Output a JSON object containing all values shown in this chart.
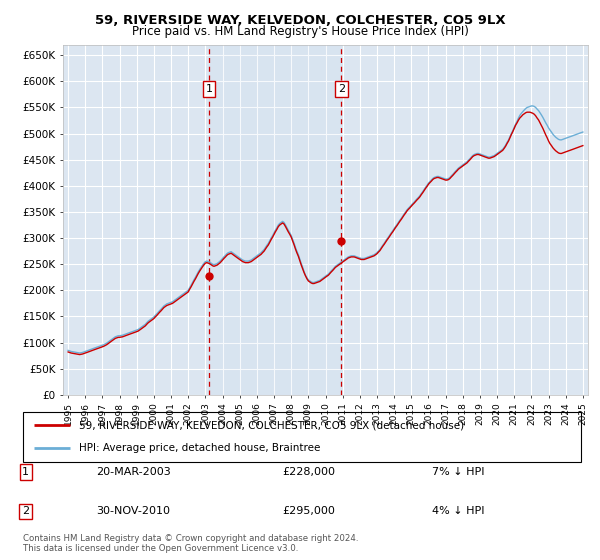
{
  "title": "59, RIVERSIDE WAY, KELVEDON, COLCHESTER, CO5 9LX",
  "subtitle": "Price paid vs. HM Land Registry's House Price Index (HPI)",
  "background_color": "#ffffff",
  "plot_bg_color": "#dce6f1",
  "grid_color": "#ffffff",
  "sale1_year": 2003.2,
  "sale1_label": "1",
  "sale1_value": 228000,
  "sale2_year": 2010.92,
  "sale2_label": "2",
  "sale2_value": 295000,
  "legend_line1": "59, RIVERSIDE WAY, KELVEDON, COLCHESTER, CO5 9LX (detached house)",
  "legend_line2": "HPI: Average price, detached house, Braintree",
  "table_row1_num": "1",
  "table_row1_date": "20-MAR-2003",
  "table_row1_price": "£228,000",
  "table_row1_hpi": "7% ↓ HPI",
  "table_row2_num": "2",
  "table_row2_date": "30-NOV-2010",
  "table_row2_price": "£295,000",
  "table_row2_hpi": "4% ↓ HPI",
  "footnote": "Contains HM Land Registry data © Crown copyright and database right 2024.\nThis data is licensed under the Open Government Licence v3.0.",
  "ylim": [
    0,
    670000
  ],
  "yticks": [
    0,
    50000,
    100000,
    150000,
    200000,
    250000,
    300000,
    350000,
    400000,
    450000,
    500000,
    550000,
    600000,
    650000
  ],
  "sale_color": "#cc0000",
  "hpi_color": "#6baed6",
  "vline_color": "#cc0000",
  "years_x": [
    1995.0,
    1995.08,
    1995.17,
    1995.25,
    1995.33,
    1995.42,
    1995.5,
    1995.58,
    1995.67,
    1995.75,
    1995.83,
    1995.92,
    1996.0,
    1996.08,
    1996.17,
    1996.25,
    1996.33,
    1996.42,
    1996.5,
    1996.58,
    1996.67,
    1996.75,
    1996.83,
    1996.92,
    1997.0,
    1997.08,
    1997.17,
    1997.25,
    1997.33,
    1997.42,
    1997.5,
    1997.58,
    1997.67,
    1997.75,
    1997.83,
    1997.92,
    1998.0,
    1998.08,
    1998.17,
    1998.25,
    1998.33,
    1998.42,
    1998.5,
    1998.58,
    1998.67,
    1998.75,
    1998.83,
    1998.92,
    1999.0,
    1999.08,
    1999.17,
    1999.25,
    1999.33,
    1999.42,
    1999.5,
    1999.58,
    1999.67,
    1999.75,
    1999.83,
    1999.92,
    2000.0,
    2000.08,
    2000.17,
    2000.25,
    2000.33,
    2000.42,
    2000.5,
    2000.58,
    2000.67,
    2000.75,
    2000.83,
    2000.92,
    2001.0,
    2001.08,
    2001.17,
    2001.25,
    2001.33,
    2001.42,
    2001.5,
    2001.58,
    2001.67,
    2001.75,
    2001.83,
    2001.92,
    2002.0,
    2002.08,
    2002.17,
    2002.25,
    2002.33,
    2002.42,
    2002.5,
    2002.58,
    2002.67,
    2002.75,
    2002.83,
    2002.92,
    2003.0,
    2003.08,
    2003.17,
    2003.25,
    2003.33,
    2003.42,
    2003.5,
    2003.58,
    2003.67,
    2003.75,
    2003.83,
    2003.92,
    2004.0,
    2004.08,
    2004.17,
    2004.25,
    2004.33,
    2004.42,
    2004.5,
    2004.58,
    2004.67,
    2004.75,
    2004.83,
    2004.92,
    2005.0,
    2005.08,
    2005.17,
    2005.25,
    2005.33,
    2005.42,
    2005.5,
    2005.58,
    2005.67,
    2005.75,
    2005.83,
    2005.92,
    2006.0,
    2006.08,
    2006.17,
    2006.25,
    2006.33,
    2006.42,
    2006.5,
    2006.58,
    2006.67,
    2006.75,
    2006.83,
    2006.92,
    2007.0,
    2007.08,
    2007.17,
    2007.25,
    2007.33,
    2007.42,
    2007.5,
    2007.58,
    2007.67,
    2007.75,
    2007.83,
    2007.92,
    2008.0,
    2008.08,
    2008.17,
    2008.25,
    2008.33,
    2008.42,
    2008.5,
    2008.58,
    2008.67,
    2008.75,
    2008.83,
    2008.92,
    2009.0,
    2009.08,
    2009.17,
    2009.25,
    2009.33,
    2009.42,
    2009.5,
    2009.58,
    2009.67,
    2009.75,
    2009.83,
    2009.92,
    2010.0,
    2010.08,
    2010.17,
    2010.25,
    2010.33,
    2010.42,
    2010.5,
    2010.58,
    2010.67,
    2010.75,
    2010.83,
    2010.92,
    2011.0,
    2011.08,
    2011.17,
    2011.25,
    2011.33,
    2011.42,
    2011.5,
    2011.58,
    2011.67,
    2011.75,
    2011.83,
    2011.92,
    2012.0,
    2012.08,
    2012.17,
    2012.25,
    2012.33,
    2012.42,
    2012.5,
    2012.58,
    2012.67,
    2012.75,
    2012.83,
    2012.92,
    2013.0,
    2013.08,
    2013.17,
    2013.25,
    2013.33,
    2013.42,
    2013.5,
    2013.58,
    2013.67,
    2013.75,
    2013.83,
    2013.92,
    2014.0,
    2014.08,
    2014.17,
    2014.25,
    2014.33,
    2014.42,
    2014.5,
    2014.58,
    2014.67,
    2014.75,
    2014.83,
    2014.92,
    2015.0,
    2015.08,
    2015.17,
    2015.25,
    2015.33,
    2015.42,
    2015.5,
    2015.58,
    2015.67,
    2015.75,
    2015.83,
    2015.92,
    2016.0,
    2016.08,
    2016.17,
    2016.25,
    2016.33,
    2016.42,
    2016.5,
    2016.58,
    2016.67,
    2016.75,
    2016.83,
    2016.92,
    2017.0,
    2017.08,
    2017.17,
    2017.25,
    2017.33,
    2017.42,
    2017.5,
    2017.58,
    2017.67,
    2017.75,
    2017.83,
    2017.92,
    2018.0,
    2018.08,
    2018.17,
    2018.25,
    2018.33,
    2018.42,
    2018.5,
    2018.58,
    2018.67,
    2018.75,
    2018.83,
    2018.92,
    2019.0,
    2019.08,
    2019.17,
    2019.25,
    2019.33,
    2019.42,
    2019.5,
    2019.58,
    2019.67,
    2019.75,
    2019.83,
    2019.92,
    2020.0,
    2020.08,
    2020.17,
    2020.25,
    2020.33,
    2020.42,
    2020.5,
    2020.58,
    2020.67,
    2020.75,
    2020.83,
    2020.92,
    2021.0,
    2021.08,
    2021.17,
    2021.25,
    2021.33,
    2021.42,
    2021.5,
    2021.58,
    2021.67,
    2021.75,
    2021.83,
    2021.92,
    2022.0,
    2022.08,
    2022.17,
    2022.25,
    2022.33,
    2022.42,
    2022.5,
    2022.58,
    2022.67,
    2022.75,
    2022.83,
    2022.92,
    2023.0,
    2023.08,
    2023.17,
    2023.25,
    2023.33,
    2023.42,
    2023.5,
    2023.58,
    2023.67,
    2023.75,
    2023.83,
    2023.92,
    2024.0,
    2024.08,
    2024.17,
    2024.25,
    2024.33,
    2024.42,
    2024.5,
    2024.58,
    2024.67,
    2024.75,
    2024.83,
    2024.92,
    2025.0
  ],
  "hpi_vals": [
    85000,
    84000,
    83000,
    82500,
    82000,
    81500,
    81000,
    80500,
    80000,
    80500,
    81000,
    82000,
    83000,
    84000,
    85000,
    86000,
    87000,
    88000,
    89000,
    90000,
    91000,
    92000,
    93000,
    94000,
    95000,
    96000,
    97500,
    99000,
    101000,
    103000,
    105000,
    107000,
    109000,
    111000,
    112000,
    113000,
    113000,
    113500,
    114000,
    115000,
    116000,
    117000,
    118000,
    119000,
    120000,
    121000,
    122000,
    123000,
    124000,
    125000,
    127000,
    129000,
    131000,
    133000,
    135000,
    138000,
    141000,
    143000,
    145000,
    147000,
    149000,
    152000,
    155000,
    158000,
    161000,
    164000,
    167000,
    170000,
    172000,
    174000,
    175000,
    176000,
    177000,
    178000,
    180000,
    182000,
    184000,
    186000,
    188000,
    190000,
    192000,
    194000,
    196000,
    198000,
    200000,
    205000,
    210000,
    215000,
    220000,
    225000,
    230000,
    235000,
    240000,
    244000,
    248000,
    252000,
    255000,
    256000,
    255000,
    254000,
    252000,
    250000,
    249000,
    250000,
    251000,
    253000,
    255000,
    258000,
    261000,
    264000,
    267000,
    270000,
    272000,
    273000,
    274000,
    272000,
    270000,
    268000,
    266000,
    264000,
    262000,
    260000,
    258000,
    257000,
    256000,
    256000,
    256000,
    257000,
    258000,
    260000,
    262000,
    264000,
    266000,
    268000,
    270000,
    272000,
    275000,
    278000,
    282000,
    286000,
    290000,
    295000,
    300000,
    305000,
    310000,
    315000,
    320000,
    325000,
    328000,
    330000,
    332000,
    330000,
    325000,
    320000,
    315000,
    310000,
    305000,
    298000,
    290000,
    282000,
    275000,
    268000,
    260000,
    252000,
    244000,
    236000,
    229000,
    224000,
    220000,
    218000,
    216000,
    215000,
    215000,
    216000,
    217000,
    218000,
    219000,
    221000,
    223000,
    225000,
    227000,
    229000,
    231000,
    234000,
    237000,
    240000,
    243000,
    246000,
    248000,
    250000,
    252000,
    254000,
    256000,
    258000,
    260000,
    262000,
    264000,
    265000,
    266000,
    266000,
    266000,
    265000,
    264000,
    263000,
    262000,
    261000,
    261000,
    261000,
    262000,
    263000,
    264000,
    265000,
    266000,
    267000,
    268000,
    270000,
    272000,
    275000,
    278000,
    282000,
    286000,
    290000,
    294000,
    298000,
    302000,
    306000,
    310000,
    314000,
    318000,
    322000,
    326000,
    330000,
    334000,
    338000,
    342000,
    346000,
    350000,
    354000,
    357000,
    360000,
    363000,
    366000,
    369000,
    372000,
    375000,
    378000,
    381000,
    385000,
    389000,
    393000,
    397000,
    401000,
    405000,
    408000,
    411000,
    414000,
    416000,
    417000,
    418000,
    418000,
    417000,
    416000,
    415000,
    414000,
    413000,
    413000,
    414000,
    416000,
    419000,
    422000,
    425000,
    428000,
    431000,
    434000,
    436000,
    438000,
    440000,
    442000,
    444000,
    446000,
    449000,
    452000,
    455000,
    458000,
    460000,
    461000,
    462000,
    462000,
    461000,
    460000,
    459000,
    458000,
    457000,
    456000,
    455000,
    455000,
    456000,
    457000,
    458000,
    460000,
    462000,
    464000,
    466000,
    468000,
    470000,
    474000,
    478000,
    483000,
    488000,
    494000,
    500000,
    506000,
    512000,
    518000,
    524000,
    530000,
    535000,
    539000,
    542000,
    545000,
    548000,
    550000,
    551000,
    552000,
    553000,
    553000,
    552000,
    550000,
    547000,
    544000,
    540000,
    536000,
    531000,
    526000,
    521000,
    516000,
    511000,
    507000,
    503000,
    499000,
    496000,
    493000,
    491000,
    489000,
    488000,
    488000,
    489000,
    490000,
    491000,
    492000,
    493000,
    494000,
    495000,
    496000,
    497000,
    498000,
    499000,
    500000,
    501000,
    502000,
    503000
  ],
  "price_vals": [
    82000,
    81000,
    80000,
    79500,
    79000,
    78500,
    78000,
    77500,
    77000,
    77500,
    78000,
    79000,
    80000,
    81000,
    82000,
    83000,
    84000,
    85000,
    86000,
    87000,
    88000,
    89000,
    90000,
    91000,
    92000,
    93000,
    94500,
    96000,
    98000,
    100000,
    102000,
    104000,
    106000,
    108000,
    109000,
    110000,
    110000,
    110500,
    111000,
    112000,
    113000,
    114000,
    115000,
    116000,
    117000,
    118000,
    119000,
    120000,
    121000,
    122000,
    124000,
    126000,
    128000,
    130000,
    132000,
    135000,
    138000,
    140000,
    142000,
    144000,
    146000,
    149000,
    152000,
    155000,
    158000,
    161000,
    164000,
    167000,
    169000,
    171000,
    172000,
    173000,
    174000,
    175000,
    177000,
    179000,
    181000,
    183000,
    185000,
    187000,
    189000,
    191000,
    193000,
    195000,
    197000,
    202000,
    207000,
    212000,
    217000,
    222000,
    227000,
    232000,
    237000,
    241000,
    245000,
    249000,
    252000,
    253000,
    252000,
    251000,
    249000,
    247000,
    246000,
    247000,
    248000,
    250000,
    252000,
    255000,
    258000,
    261000,
    264000,
    267000,
    269000,
    270000,
    271000,
    269000,
    267000,
    265000,
    263000,
    261000,
    259000,
    257000,
    255000,
    254000,
    253000,
    253000,
    253000,
    254000,
    255000,
    257000,
    259000,
    261000,
    263000,
    265000,
    267000,
    269000,
    272000,
    275000,
    279000,
    283000,
    287000,
    292000,
    297000,
    302000,
    307000,
    312000,
    317000,
    322000,
    325000,
    327000,
    329000,
    327000,
    322000,
    317000,
    312000,
    307000,
    302000,
    295000,
    287000,
    279000,
    272000,
    265000,
    257000,
    249000,
    241000,
    234000,
    228000,
    222000,
    218000,
    216000,
    214000,
    213000,
    213000,
    214000,
    215000,
    216000,
    217000,
    219000,
    221000,
    223000,
    225000,
    227000,
    229000,
    232000,
    235000,
    238000,
    241000,
    244000,
    246000,
    248000,
    250000,
    252000,
    254000,
    256000,
    258000,
    260000,
    262000,
    263000,
    264000,
    264000,
    264000,
    263000,
    262000,
    261000,
    260000,
    259000,
    259000,
    259000,
    260000,
    261000,
    262000,
    263000,
    264000,
    265000,
    266000,
    268000,
    270000,
    273000,
    276000,
    280000,
    284000,
    288000,
    292000,
    296000,
    300000,
    304000,
    308000,
    312000,
    316000,
    320000,
    324000,
    328000,
    332000,
    336000,
    340000,
    344000,
    348000,
    352000,
    355000,
    358000,
    361000,
    364000,
    367000,
    370000,
    373000,
    376000,
    379000,
    383000,
    387000,
    391000,
    395000,
    399000,
    403000,
    406000,
    409000,
    412000,
    414000,
    415000,
    416000,
    416000,
    415000,
    414000,
    413000,
    412000,
    411000,
    411000,
    412000,
    414000,
    417000,
    420000,
    423000,
    426000,
    429000,
    432000,
    434000,
    436000,
    438000,
    440000,
    442000,
    444000,
    447000,
    450000,
    453000,
    456000,
    458000,
    459000,
    460000,
    460000,
    459000,
    458000,
    457000,
    456000,
    455000,
    454000,
    453000,
    453000,
    454000,
    455000,
    456000,
    458000,
    460000,
    462000,
    464000,
    466000,
    468000,
    472000,
    476000,
    481000,
    486000,
    492000,
    498000,
    504000,
    510000,
    516000,
    521000,
    526000,
    530000,
    533000,
    536000,
    538000,
    540000,
    541000,
    541000,
    541000,
    540000,
    539000,
    537000,
    534000,
    530000,
    526000,
    521000,
    516000,
    510000,
    504000,
    498000,
    492000,
    486000,
    481000,
    477000,
    473000,
    470000,
    467000,
    465000,
    463000,
    462000,
    462000,
    463000,
    464000,
    465000,
    466000,
    467000,
    468000,
    469000,
    470000,
    471000,
    472000,
    473000,
    474000,
    475000,
    476000,
    477000
  ]
}
